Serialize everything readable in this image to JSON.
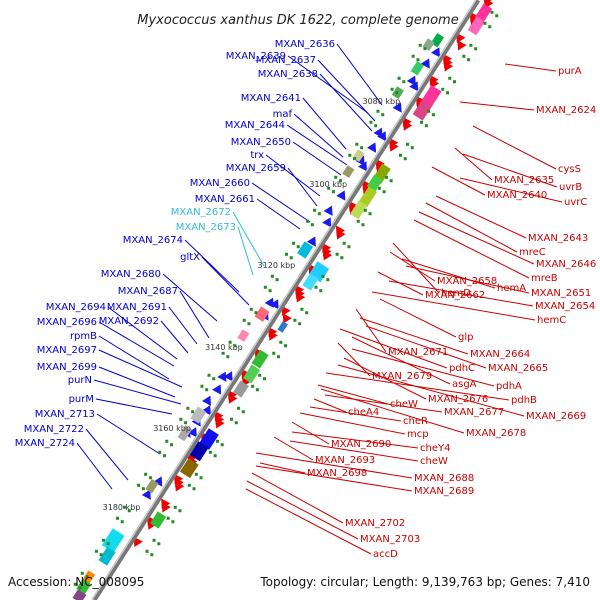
{
  "title": "Myxococcus xanthus DK 1622, complete genome",
  "accession": "Accession: NC_008095",
  "topology": "Topology: circular; Length: 9,139,763 bp; Genes: 7,410",
  "colors": {
    "left_label": "#0000cc",
    "left_label_highlight": "#33bbdd",
    "right_label": "#cc0000",
    "backbone": "#777777"
  },
  "scale_marks": [
    "3080 kbp",
    "3100 kbp",
    "3120 kbp",
    "3140 kbp",
    "3160 kbp",
    "3180 kbp"
  ],
  "left_genes": [
    "MXAN_2636",
    "MXAN_2639",
    "MXAN_2637",
    "MXAN_2638",
    "MXAN_2641",
    "maf",
    "MXAN_2644",
    "MXAN_2650",
    "trx",
    "MXAN_2659",
    "MXAN_2660",
    "MXAN_2661",
    "MXAN_2672",
    "MXAN_2673",
    "MXAN_2674",
    "gltX",
    "MXAN_2680",
    "MXAN_2687",
    "MXAN_2694",
    "MXAN_2691",
    "MXAN_2696",
    "MXAN_2692",
    "rpmB",
    "MXAN_2697",
    "MXAN_2699",
    "purN",
    "purM",
    "MXAN_2713",
    "MXAN_2722",
    "MXAN_2724"
  ],
  "right_genes": [
    "purA",
    "MXAN_2624",
    "cysS",
    "MXAN_2635",
    "uvrB",
    "MXAN_2640",
    "uvrC",
    "MXAN_2643",
    "mreC",
    "MXAN_2646",
    "mreB",
    "hemD",
    "MXAN_2658",
    "hemA",
    "MXAN_2651",
    "MXAN_2662",
    "MXAN_2654",
    "hemC",
    "glp",
    "MXAN_2671",
    "MXAN_2664",
    "pdhC",
    "MXAN_2665",
    "MXAN_2679",
    "asgA",
    "pdhA",
    "MXAN_2676",
    "pdhB",
    "cheW",
    "MXAN_2677",
    "MXAN_2669",
    "cheA4",
    "cheR",
    "MXAN_2678",
    "mcp",
    "MXAN_2690",
    "cheY4",
    "MXAN_2693",
    "cheW",
    "MXAN_2698",
    "MXAN_2688",
    "MXAN_2689",
    "MXAN_2702",
    "MXAN_2703",
    "accD"
  ]
}
